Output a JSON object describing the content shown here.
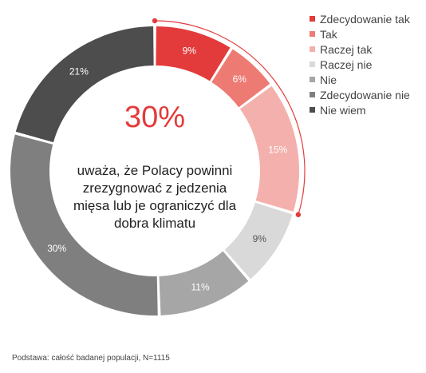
{
  "chart_data": {
    "type": "donut",
    "categories": [
      "Zdecydowanie tak",
      "Tak",
      "Raczej tak",
      "Raczej nie",
      "Nie",
      "Zdecydowanie nie",
      "Nie wiem"
    ],
    "values": [
      9,
      6,
      15,
      9,
      11,
      30,
      21
    ],
    "value_labels": [
      "9%",
      "6%",
      "15%",
      "9%",
      "11%",
      "30%",
      "21%"
    ],
    "colors": [
      "#e33b3b",
      "#ee7b73",
      "#f4b0ac",
      "#d9d9d9",
      "#a6a6a6",
      "#7f7f7f",
      "#4d4d4d"
    ],
    "highlight_color": "#e33b3b",
    "legend_position": "top-right"
  },
  "center": {
    "value": "30%",
    "text": "uważa, że Polacy powinni zrezygnować z jedzenia mięsa lub je ograniczyć dla dobra klimatu"
  },
  "footnote": "Podstawa: całość badanej populacji, N=1115"
}
